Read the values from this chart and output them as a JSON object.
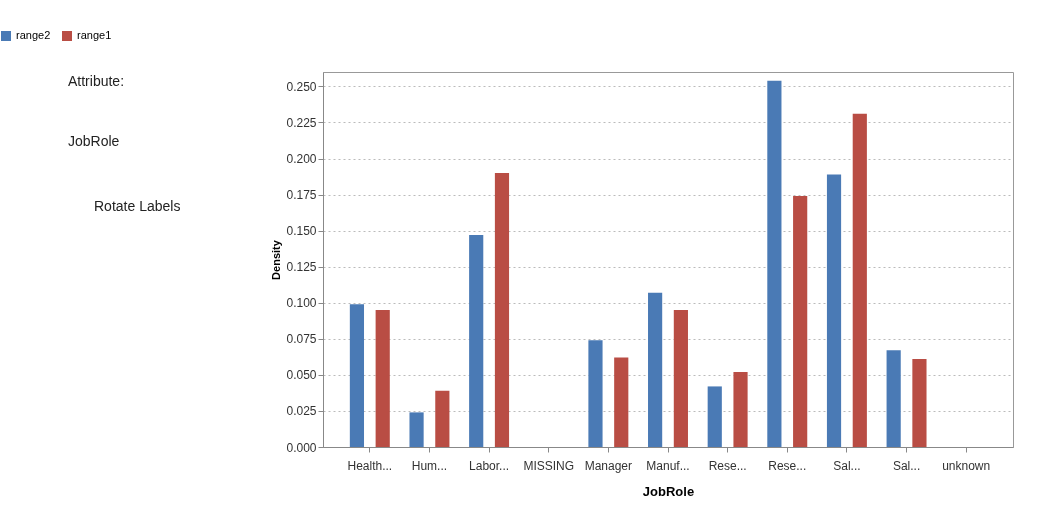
{
  "chart_data": {
    "type": "bar",
    "xlabel": "JobRole",
    "ylabel": "Density",
    "categories": [
      "Health...",
      "Hum...",
      "Labor...",
      "MISSING",
      "Manager",
      "Manuf...",
      "Rese...",
      "Rese...",
      "Sal...",
      "Sal...",
      "unknown"
    ],
    "series": [
      {
        "name": "range2",
        "color": "#4a7ab5",
        "values": [
          0.099,
          0.024,
          0.147,
          0,
          0.074,
          0.107,
          0.042,
          0.254,
          0.189,
          0.067,
          0
        ]
      },
      {
        "name": "range1",
        "color": "#b94d44",
        "values": [
          0.095,
          0.039,
          0.19,
          0,
          0.062,
          0.095,
          0.052,
          0.174,
          0.231,
          0.061,
          0
        ]
      }
    ],
    "ylim": [
      0,
      0.26
    ],
    "yticks": [
      {
        "value": 0,
        "label": "0.000"
      },
      {
        "value": 0.025,
        "label": "0.025"
      },
      {
        "value": 0.05,
        "label": "0.050"
      },
      {
        "value": 0.075,
        "label": "0.075"
      },
      {
        "value": 0.1,
        "label": "0.100"
      },
      {
        "value": 0.125,
        "label": "0.125"
      },
      {
        "value": 0.15,
        "label": "0.150"
      },
      {
        "value": 0.175,
        "label": "0.175"
      },
      {
        "value": 0.2,
        "label": "0.200"
      },
      {
        "value": 0.225,
        "label": "0.225"
      },
      {
        "value": 0.25,
        "label": "0.250"
      }
    ],
    "grid": "y",
    "legend": "top left",
    "annotations": [
      "Attribute:",
      "JobRole",
      "Rotate Labels"
    ]
  }
}
